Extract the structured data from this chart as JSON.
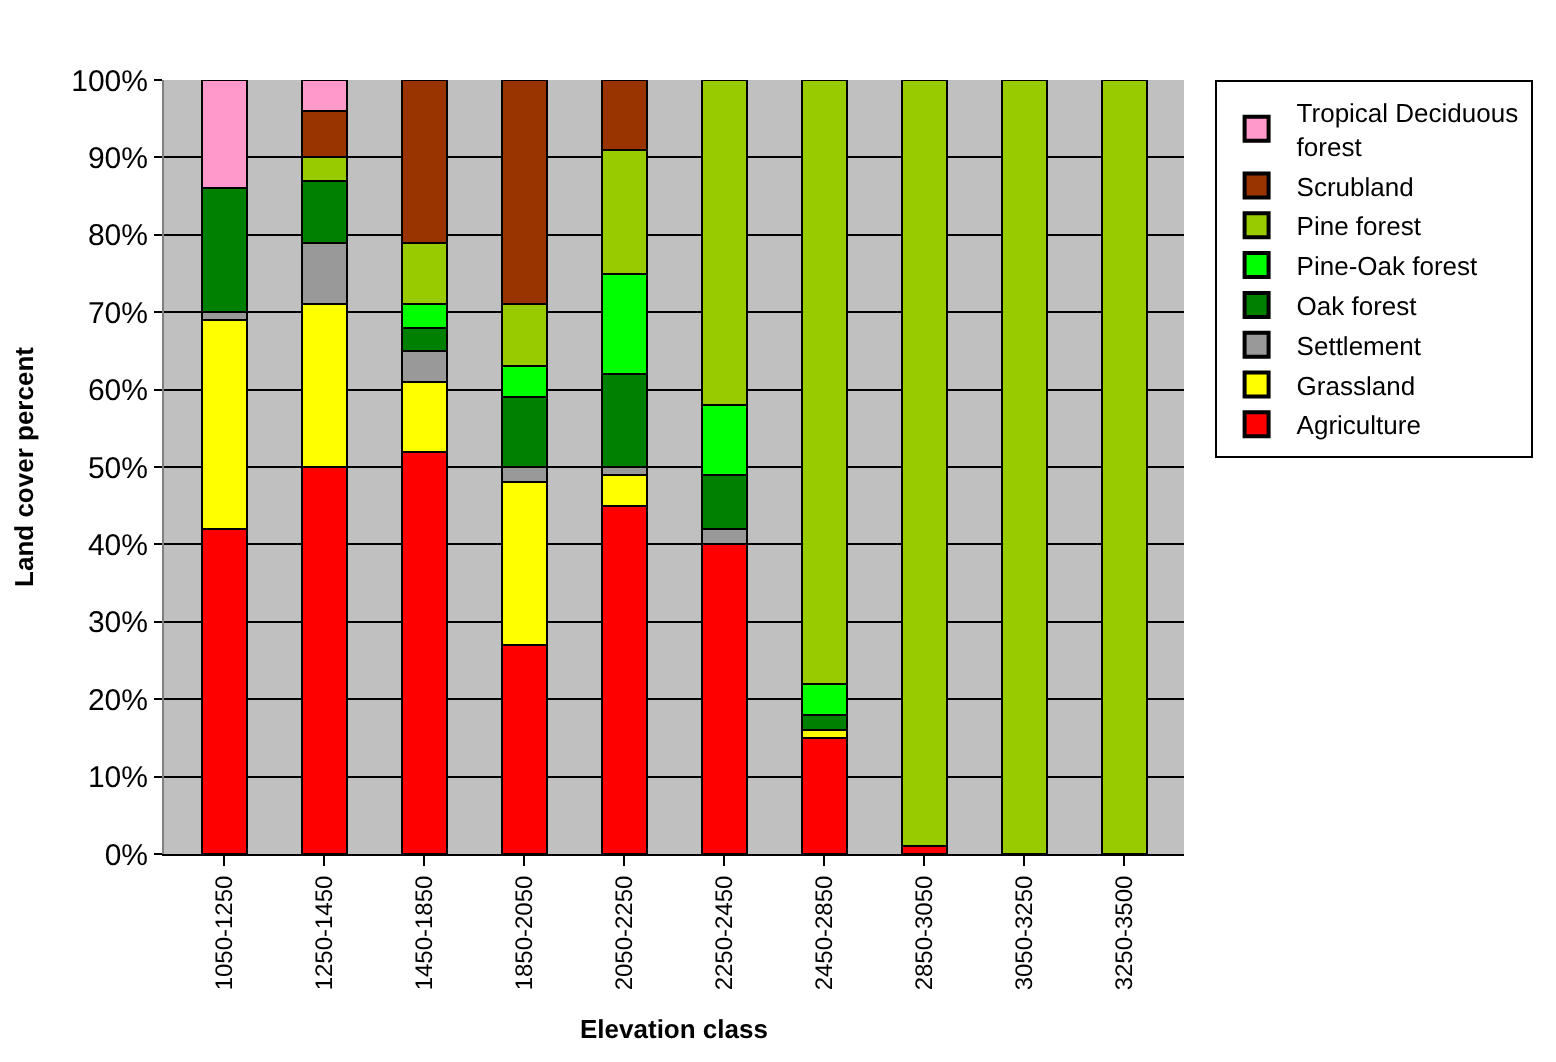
{
  "chart_data": {
    "type": "bar",
    "stacked": true,
    "xlabel": "Elevation class",
    "ylabel": "Land cover percent",
    "categories": [
      "1050-1250",
      "1250-1450",
      "1450-1850",
      "1850-2050",
      "2050-2250",
      "2250-2450",
      "2450-2850",
      "2850-3050",
      "3050-3250",
      "3250-3500"
    ],
    "series": [
      {
        "name": "Agriculture",
        "color": "#ff0000",
        "values": [
          42,
          50,
          52,
          27,
          45,
          40,
          15,
          1,
          0,
          0
        ]
      },
      {
        "name": "Grassland",
        "color": "#ffff00",
        "values": [
          27,
          21,
          9,
          21,
          4,
          0,
          1,
          0,
          0,
          0
        ]
      },
      {
        "name": "Settlement",
        "color": "#999999",
        "values": [
          1,
          8,
          4,
          2,
          1,
          2,
          0,
          0,
          0,
          0
        ]
      },
      {
        "name": "Oak forest",
        "color": "#008000",
        "values": [
          16,
          8,
          3,
          9,
          12,
          7,
          2,
          0,
          0,
          0
        ]
      },
      {
        "name": "Pine-Oak forest",
        "color": "#00ff00",
        "values": [
          0,
          0,
          3,
          4,
          13,
          9,
          4,
          0,
          0,
          0
        ]
      },
      {
        "name": "Pine forest",
        "color": "#99cc00",
        "values": [
          0,
          3,
          8,
          8,
          16,
          42,
          78,
          99,
          100,
          100
        ]
      },
      {
        "name": "Scrubland",
        "color": "#993300",
        "values": [
          0,
          6,
          21,
          29,
          9,
          0,
          0,
          0,
          0,
          0
        ]
      },
      {
        "name": "Tropical Deciduous forest",
        "color": "#ff99cc",
        "values": [
          14,
          4,
          0,
          0,
          0,
          0,
          0,
          0,
          0,
          0
        ]
      }
    ],
    "ylim": [
      0,
      100
    ],
    "yticks": [
      {
        "value": 0,
        "label": "0%"
      },
      {
        "value": 10,
        "label": "10%"
      },
      {
        "value": 20,
        "label": "20%"
      },
      {
        "value": 30,
        "label": "30%"
      },
      {
        "value": 40,
        "label": "40%"
      },
      {
        "value": 50,
        "label": "50%"
      },
      {
        "value": 60,
        "label": "60%"
      },
      {
        "value": 70,
        "label": "70%"
      },
      {
        "value": 80,
        "label": "80%"
      },
      {
        "value": 90,
        "label": "90%"
      },
      {
        "value": 100,
        "label": "100%"
      }
    ],
    "grid": "y",
    "legend": "right"
  }
}
